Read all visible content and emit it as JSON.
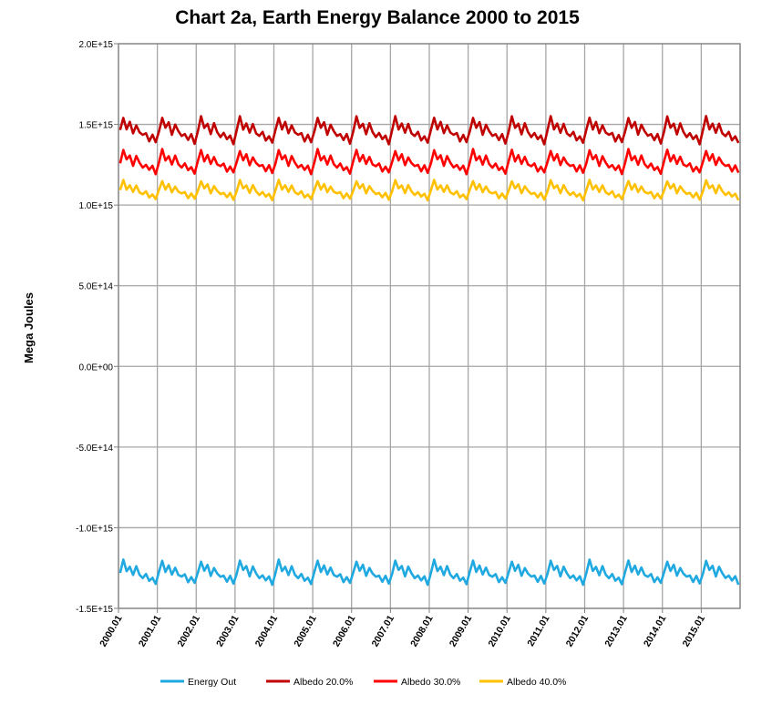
{
  "chart_data": {
    "type": "line",
    "title": "Chart 2a, Earth Energy Balance 2000 to 2015",
    "xlabel": "",
    "ylabel": "Mega Joules",
    "x_tick_labels": [
      "2000.01",
      "2001.01",
      "2002.01",
      "2003.01",
      "2004.01",
      "2005.01",
      "2006.01",
      "2007.01",
      "2008.01",
      "2009.01",
      "2010.01",
      "2011.01",
      "2012.01",
      "2013.01",
      "2014.01",
      "2015.01"
    ],
    "y_ticks": [
      2000000000000000.0,
      1500000000000000.0,
      1000000000000000.0,
      500000000000000.0,
      0,
      -500000000000000.0,
      -1000000000000000.0,
      -1500000000000000.0
    ],
    "y_tick_labels": [
      "2.0E+15",
      "1.5E+15",
      "1.0E+15",
      "5.0E+14",
      "0.0E+00",
      "-5.0E+14",
      "-1.0E+15",
      "-1.5E+15"
    ],
    "ylim": [
      -1500000000000000.0,
      2000000000000000.0
    ],
    "grid": true,
    "legend_position": "bottom",
    "annual_pattern": [
      0,
      0.95,
      0.15,
      0.55,
      -0.2,
      0.45,
      -0.1,
      -0.35,
      -0.15,
      -0.65,
      -0.3,
      -0.85
    ],
    "series": [
      {
        "name": "Energy Out",
        "color": "#1fa9e0",
        "base": -1280000000000000.0,
        "amplitude": 80000000000000.0
      },
      {
        "name": "Albedo 20.0%",
        "color": "#c00000",
        "base": 1460000000000000.0,
        "amplitude": 90000000000000.0
      },
      {
        "name": "Albedo 30.0%",
        "color": "#ff0000",
        "base": 1265000000000000.0,
        "amplitude": 80000000000000.0
      },
      {
        "name": "Albedo 40.0%",
        "color": "#ffc000",
        "base": 1090000000000000.0,
        "amplitude": 65000000000000.0
      }
    ]
  }
}
